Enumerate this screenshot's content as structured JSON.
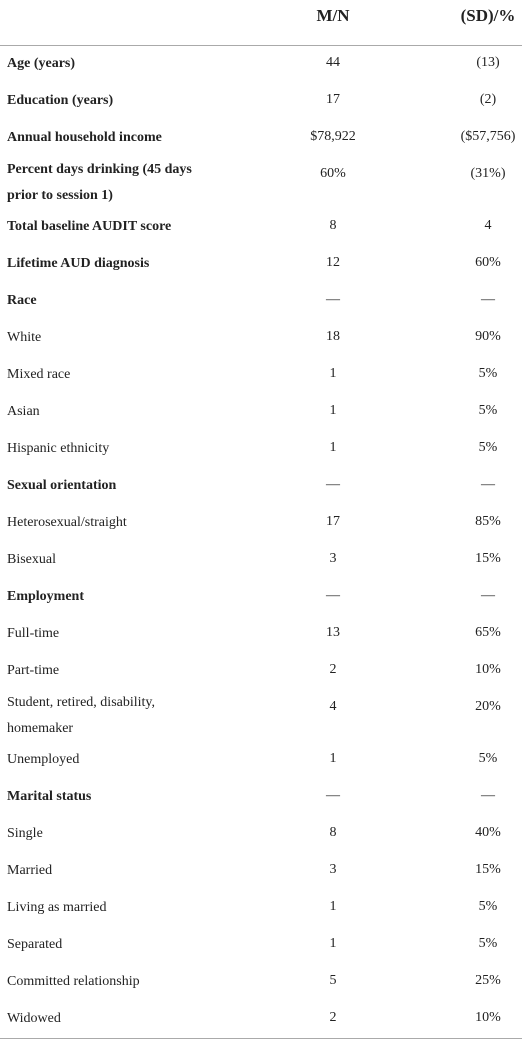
{
  "table": {
    "header": [
      "",
      "M/N",
      "(SD)/%"
    ],
    "rows": [
      {
        "label": "Age (years)",
        "mn": "44",
        "sd": "(13)",
        "bold": true
      },
      {
        "label": "Education (years)",
        "mn": "17",
        "sd": "(2)",
        "bold": true
      },
      {
        "label": "Annual household income",
        "mn": "$78,922",
        "sd": "($57,756)",
        "bold": true
      },
      {
        "label": "Percent days drinking (45 days prior to session 1)",
        "mn": "60%",
        "sd": "(31%)",
        "bold": true
      },
      {
        "label": "Total baseline AUDIT score",
        "mn": "8",
        "sd": "4",
        "bold": true
      },
      {
        "label": "Lifetime AUD diagnosis",
        "mn": "12",
        "sd": "60%",
        "bold": true
      },
      {
        "label": "Race",
        "mn": "—",
        "sd": "—",
        "bold": true
      },
      {
        "label": "White",
        "mn": "18",
        "sd": "90%",
        "bold": false
      },
      {
        "label": "Mixed race",
        "mn": "1",
        "sd": "5%",
        "bold": false
      },
      {
        "label": "Asian",
        "mn": "1",
        "sd": "5%",
        "bold": false
      },
      {
        "label": "Hispanic ethnicity",
        "mn": "1",
        "sd": "5%",
        "bold": false
      },
      {
        "label": "Sexual orientation",
        "mn": "—",
        "sd": "—",
        "bold": true
      },
      {
        "label": "Heterosexual/straight",
        "mn": "17",
        "sd": "85%",
        "bold": false
      },
      {
        "label": "Bisexual",
        "mn": "3",
        "sd": "15%",
        "bold": false
      },
      {
        "label": "Employment",
        "mn": "—",
        "sd": "—",
        "bold": true
      },
      {
        "label": "Full-time",
        "mn": "13",
        "sd": "65%",
        "bold": false
      },
      {
        "label": "Part-time",
        "mn": "2",
        "sd": "10%",
        "bold": false
      },
      {
        "label": "Student, retired, disability, homemaker",
        "mn": "4",
        "sd": "20%",
        "bold": false
      },
      {
        "label": "Unemployed",
        "mn": "1",
        "sd": "5%",
        "bold": false
      },
      {
        "label": "Marital status",
        "mn": "—",
        "sd": "—",
        "bold": true
      },
      {
        "label": "Single",
        "mn": "8",
        "sd": "40%",
        "bold": false
      },
      {
        "label": "Married",
        "mn": "3",
        "sd": "15%",
        "bold": false
      },
      {
        "label": "Living as married",
        "mn": "1",
        "sd": "5%",
        "bold": false
      },
      {
        "label": "Separated",
        "mn": "1",
        "sd": "5%",
        "bold": false
      },
      {
        "label": "Committed relationship",
        "mn": "5",
        "sd": "25%",
        "bold": false
      },
      {
        "label": "Widowed",
        "mn": "2",
        "sd": "10%",
        "bold": false
      }
    ]
  }
}
